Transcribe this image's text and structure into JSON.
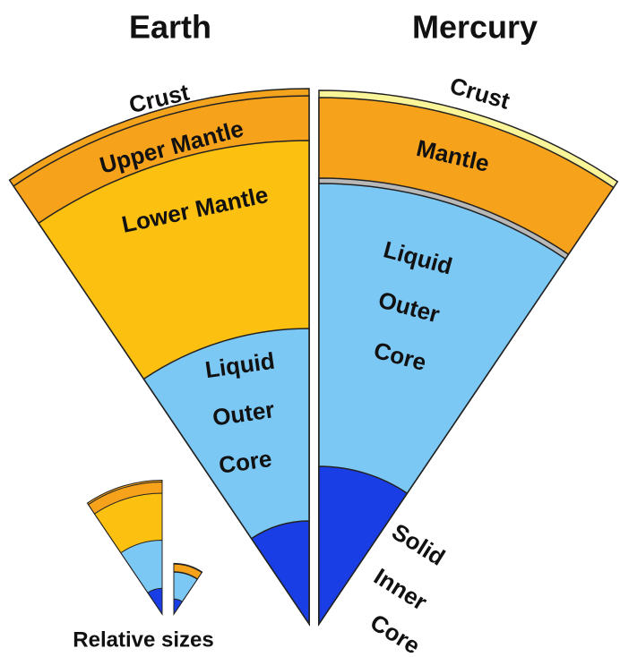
{
  "earth": {
    "title": "Earth",
    "layers": {
      "crust": "Crust",
      "upper_mantle": "Upper Mantle",
      "lower_mantle": "Lower Mantle",
      "outer_core": [
        "Liquid",
        "Outer",
        "Core"
      ]
    }
  },
  "mercury": {
    "title": "Mercury",
    "layers": {
      "crust": "Crust",
      "mantle": "Mantle",
      "outer_core": [
        "Liquid",
        "Outer",
        "Core"
      ],
      "inner_core": [
        "Solid",
        "Inner",
        "Core"
      ]
    }
  },
  "caption": "Relative sizes"
}
